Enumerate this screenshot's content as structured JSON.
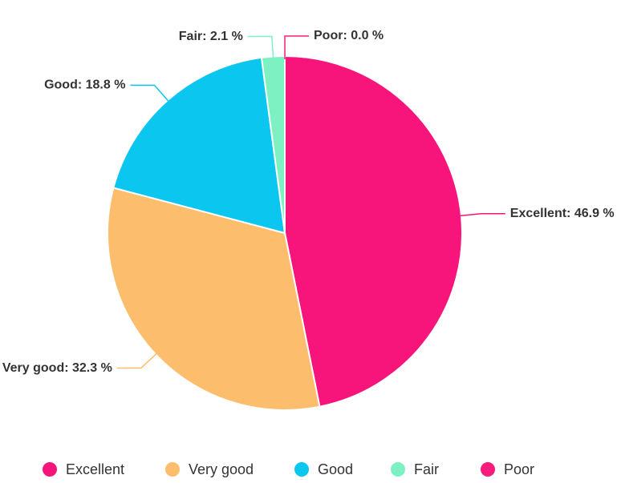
{
  "chart_data": {
    "type": "pie",
    "categories": [
      "Excellent",
      "Very good",
      "Good",
      "Fair",
      "Poor"
    ],
    "values": [
      46.9,
      32.3,
      18.8,
      2.1,
      0.0
    ],
    "value_labels": [
      "Excellent: 46.9 %",
      "Very good: 32.3 %",
      "Good: 18.8 %",
      "Fair: 2.1 %",
      "Poor: 0.0 %"
    ],
    "colors": [
      "#f8157b",
      "#fcbe6c",
      "#0bc6ee",
      "#7ef1c2",
      "#f81d7d"
    ],
    "legend": "bottom"
  }
}
